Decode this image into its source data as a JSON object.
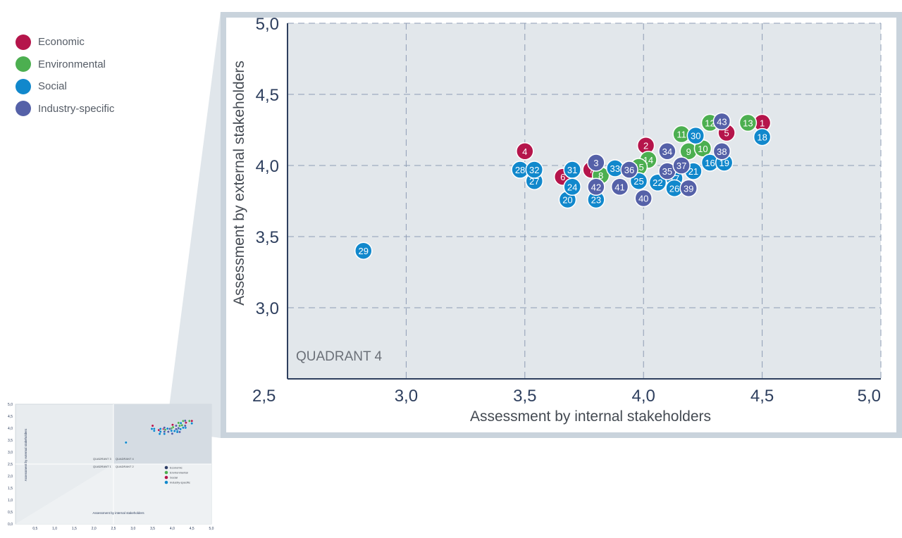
{
  "legend": [
    {
      "label": "Economic",
      "color": "#b5154b"
    },
    {
      "label": "Environmental",
      "color": "#4caf50"
    },
    {
      "label": "Social",
      "color": "#1188cc"
    },
    {
      "label": "Industry-specific",
      "color": "#5561a8"
    }
  ],
  "chart_data": {
    "type": "scatter",
    "xlabel": "Assessment by internal stakeholders",
    "ylabel": "Assessment by external stakeholders",
    "xlim": [
      2.5,
      5.0
    ],
    "ylim": [
      2.5,
      5.0
    ],
    "x_ticks": [
      "2,5",
      "3,0",
      "3,5",
      "4,0",
      "4,5",
      "5,0"
    ],
    "y_ticks": [
      "3,0",
      "3,5",
      "4,0",
      "4,5",
      "5,0"
    ],
    "grid": true,
    "quadrant_label": "QUADRANT 4",
    "series": [
      {
        "name": "Economic",
        "color": "#b5154b",
        "points": [
          {
            "label": "1",
            "x": 4.5,
            "y": 4.3
          },
          {
            "label": "2",
            "x": 4.01,
            "y": 4.14
          },
          {
            "label": "4",
            "x": 3.5,
            "y": 4.1
          },
          {
            "label": "5",
            "x": 4.35,
            "y": 4.23
          },
          {
            "label": "6",
            "x": 3.66,
            "y": 3.92
          },
          {
            "label": "7",
            "x": 3.78,
            "y": 3.97
          }
        ]
      },
      {
        "name": "Environmental",
        "color": "#4caf50",
        "points": [
          {
            "label": "8",
            "x": 3.82,
            "y": 3.93
          },
          {
            "label": "9",
            "x": 4.19,
            "y": 4.1
          },
          {
            "label": "10",
            "x": 4.25,
            "y": 4.12
          },
          {
            "label": "11",
            "x": 4.16,
            "y": 4.22
          },
          {
            "label": "12",
            "x": 4.28,
            "y": 4.3
          },
          {
            "label": "13",
            "x": 4.44,
            "y": 4.3
          },
          {
            "label": "14",
            "x": 4.02,
            "y": 4.04
          },
          {
            "label": "15",
            "x": 3.98,
            "y": 3.99
          }
        ]
      },
      {
        "name": "Social",
        "color": "#1188cc",
        "points": [
          {
            "label": "16",
            "x": 4.28,
            "y": 4.02
          },
          {
            "label": "17",
            "x": 4.13,
            "y": 3.91
          },
          {
            "label": "18",
            "x": 4.5,
            "y": 4.2
          },
          {
            "label": "19",
            "x": 4.34,
            "y": 4.02
          },
          {
            "label": "20",
            "x": 3.68,
            "y": 3.76
          },
          {
            "label": "21",
            "x": 4.21,
            "y": 3.96
          },
          {
            "label": "22",
            "x": 4.06,
            "y": 3.88
          },
          {
            "label": "23",
            "x": 3.8,
            "y": 3.76
          },
          {
            "label": "24",
            "x": 3.7,
            "y": 3.85
          },
          {
            "label": "25",
            "x": 3.98,
            "y": 3.89
          },
          {
            "label": "26",
            "x": 4.13,
            "y": 3.84
          },
          {
            "label": "27",
            "x": 3.54,
            "y": 3.89
          },
          {
            "label": "28",
            "x": 3.48,
            "y": 3.97
          },
          {
            "label": "29",
            "x": 2.82,
            "y": 3.4
          },
          {
            "label": "30",
            "x": 4.22,
            "y": 4.21
          },
          {
            "label": "31",
            "x": 3.7,
            "y": 3.97
          },
          {
            "label": "32",
            "x": 3.54,
            "y": 3.97
          },
          {
            "label": "33",
            "x": 3.88,
            "y": 3.98
          }
        ]
      },
      {
        "name": "Industry-specific",
        "color": "#5561a8",
        "points": [
          {
            "label": "3",
            "x": 3.8,
            "y": 4.02
          },
          {
            "label": "34",
            "x": 4.1,
            "y": 4.1
          },
          {
            "label": "35",
            "x": 4.1,
            "y": 3.96
          },
          {
            "label": "36",
            "x": 3.94,
            "y": 3.97
          },
          {
            "label": "37",
            "x": 4.16,
            "y": 4.0
          },
          {
            "label": "38",
            "x": 4.33,
            "y": 4.1
          },
          {
            "label": "39",
            "x": 4.19,
            "y": 3.84
          },
          {
            "label": "40",
            "x": 4.0,
            "y": 3.77
          },
          {
            "label": "41",
            "x": 3.9,
            "y": 3.85
          },
          {
            "label": "42",
            "x": 3.8,
            "y": 3.85
          },
          {
            "label": "43",
            "x": 4.33,
            "y": 4.31
          }
        ]
      }
    ]
  },
  "mini_chart": {
    "x_ticks": [
      "0,5",
      "1,0",
      "1,5",
      "2,0",
      "2,5",
      "3,0",
      "3,5",
      "4,0",
      "4,5",
      "5,0"
    ],
    "y_ticks": [
      "0,0",
      "0,5",
      "1,0",
      "1,5",
      "2,0",
      "2,5",
      "3,0",
      "3,5",
      "4,0",
      "4,5",
      "5,0"
    ],
    "xlabel": "Assessment by internal stakeholders",
    "ylabel": "Assessment by external stakeholders",
    "quadrant_labels": [
      "QUADRANT 3",
      "QUADRANT 4",
      "QUADRANT 1",
      "QUADRANT 2"
    ],
    "legend": [
      {
        "label": "Economic",
        "color": "#2d3e66"
      },
      {
        "label": "Environmental",
        "color": "#4caf50"
      },
      {
        "label": "Social",
        "color": "#b5154b"
      },
      {
        "label": "Industry-specific",
        "color": "#1188cc"
      }
    ]
  }
}
